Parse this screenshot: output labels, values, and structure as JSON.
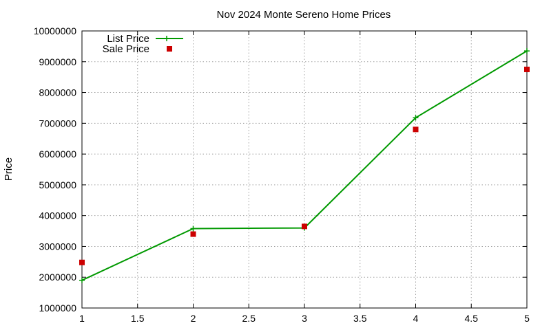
{
  "chart_data": {
    "type": "line",
    "title": "Nov 2024 Monte Sereno Home Prices",
    "xlabel": "",
    "ylabel": "Price",
    "xlim": [
      1,
      5
    ],
    "ylim": [
      1000000,
      10000000
    ],
    "x_ticks": [
      "1",
      "1.5",
      "2",
      "2.5",
      "3",
      "3.5",
      "4",
      "4.5",
      "5"
    ],
    "x_tick_values": [
      1,
      1.5,
      2,
      2.5,
      3,
      3.5,
      4,
      4.5,
      5
    ],
    "y_ticks": [
      "1000000",
      "2000000",
      "3000000",
      "4000000",
      "5000000",
      "6000000",
      "7000000",
      "8000000",
      "9000000",
      "10000000"
    ],
    "y_tick_values": [
      1000000,
      2000000,
      3000000,
      4000000,
      5000000,
      6000000,
      7000000,
      8000000,
      9000000,
      10000000
    ],
    "grid": true,
    "legend_position": "top-left",
    "series": [
      {
        "name": "List Price",
        "style": "line-points",
        "color": "#009900",
        "x": [
          1,
          2,
          3,
          4,
          5
        ],
        "values": [
          1900000,
          3580000,
          3600000,
          7180000,
          9350000
        ]
      },
      {
        "name": "Sale Price",
        "style": "points",
        "color": "#cc0000",
        "x": [
          1,
          2,
          3,
          4,
          5
        ],
        "values": [
          2480000,
          3400000,
          3650000,
          6800000,
          8750000
        ]
      }
    ]
  }
}
